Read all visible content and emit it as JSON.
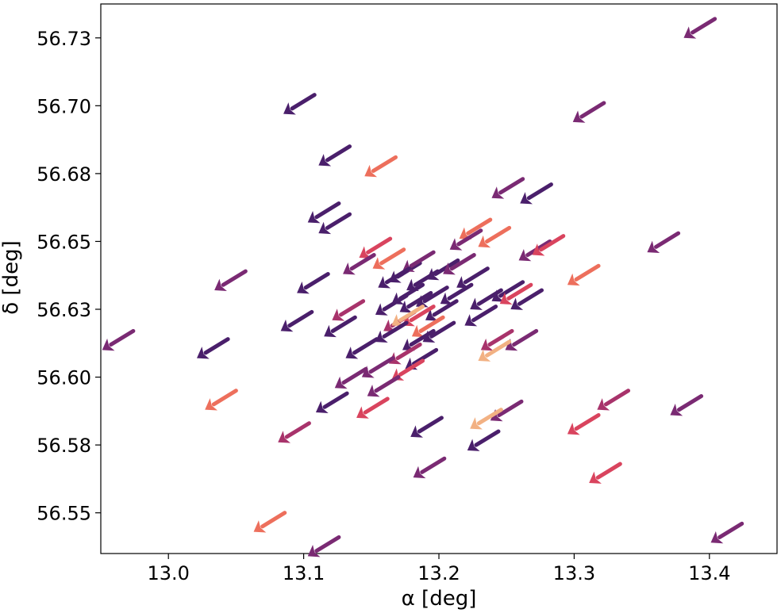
{
  "chart_data": {
    "type": "quiver",
    "xlabel": "α [deg]",
    "ylabel": "δ [deg]",
    "xlim": [
      12.95,
      13.45
    ],
    "ylim": [
      56.535,
      56.7375
    ],
    "xticks": [
      13.0,
      13.1,
      13.2,
      13.3,
      13.4
    ],
    "xtick_labels": [
      "13.0",
      "13.1",
      "13.2",
      "13.3",
      "13.4"
    ],
    "yticks": [
      56.55,
      56.575,
      56.6,
      56.625,
      56.65,
      56.675,
      56.7,
      56.725
    ],
    "ytick_labels": [
      "56.55",
      "56.58",
      "56.60",
      "56.63",
      "56.65",
      "56.68",
      "56.70",
      "56.73"
    ],
    "grid": false,
    "colormap": "magma",
    "colors": {
      "dark": "#4a1f6b",
      "purple": "#7a2a73",
      "magenta": "#a8336b",
      "red": "#d9445e",
      "coral": "#ed6f5c",
      "peach": "#f2b183"
    },
    "arrows": [
      {
        "x": 13.404,
        "y": 56.732,
        "c": "purple"
      },
      {
        "x": 13.108,
        "y": 56.704,
        "c": "dark"
      },
      {
        "x": 13.322,
        "y": 56.701,
        "c": "purple"
      },
      {
        "x": 13.134,
        "y": 56.685,
        "c": "dark"
      },
      {
        "x": 13.168,
        "y": 56.681,
        "c": "coral"
      },
      {
        "x": 13.262,
        "y": 56.673,
        "c": "purple"
      },
      {
        "x": 13.283,
        "y": 56.671,
        "c": "dark"
      },
      {
        "x": 13.126,
        "y": 56.664,
        "c": "dark"
      },
      {
        "x": 13.134,
        "y": 56.66,
        "c": "dark"
      },
      {
        "x": 13.238,
        "y": 56.658,
        "c": "coral"
      },
      {
        "x": 13.252,
        "y": 56.655,
        "c": "coral"
      },
      {
        "x": 13.231,
        "y": 56.654,
        "c": "purple"
      },
      {
        "x": 13.164,
        "y": 56.651,
        "c": "red"
      },
      {
        "x": 13.282,
        "y": 56.65,
        "c": "purple"
      },
      {
        "x": 13.292,
        "y": 56.652,
        "c": "red"
      },
      {
        "x": 13.377,
        "y": 56.653,
        "c": "purple"
      },
      {
        "x": 13.152,
        "y": 56.645,
        "c": "purple"
      },
      {
        "x": 13.174,
        "y": 56.647,
        "c": "coral"
      },
      {
        "x": 13.186,
        "y": 56.642,
        "c": "dark"
      },
      {
        "x": 13.196,
        "y": 56.646,
        "c": "purple"
      },
      {
        "x": 13.214,
        "y": 56.643,
        "c": "dark"
      },
      {
        "x": 13.226,
        "y": 56.645,
        "c": "purple"
      },
      {
        "x": 13.318,
        "y": 56.641,
        "c": "coral"
      },
      {
        "x": 13.118,
        "y": 56.638,
        "c": "dark"
      },
      {
        "x": 13.178,
        "y": 56.64,
        "c": "dark"
      },
      {
        "x": 13.199,
        "y": 56.639,
        "c": "dark"
      },
      {
        "x": 13.236,
        "y": 56.64,
        "c": "dark"
      },
      {
        "x": 13.057,
        "y": 56.639,
        "c": "purple"
      },
      {
        "x": 13.188,
        "y": 56.634,
        "c": "dark"
      },
      {
        "x": 13.206,
        "y": 56.633,
        "c": "dark"
      },
      {
        "x": 13.224,
        "y": 56.634,
        "c": "dark"
      },
      {
        "x": 13.262,
        "y": 56.635,
        "c": "dark"
      },
      {
        "x": 13.176,
        "y": 56.63,
        "c": "dark"
      },
      {
        "x": 13.194,
        "y": 56.631,
        "c": "dark"
      },
      {
        "x": 13.213,
        "y": 56.628,
        "c": "dark"
      },
      {
        "x": 13.246,
        "y": 56.632,
        "c": "dark"
      },
      {
        "x": 13.268,
        "y": 56.634,
        "c": "red"
      },
      {
        "x": 13.276,
        "y": 56.632,
        "c": "dark"
      },
      {
        "x": 13.182,
        "y": 56.624,
        "c": "magenta"
      },
      {
        "x": 13.196,
        "y": 56.626,
        "c": "red"
      },
      {
        "x": 13.203,
        "y": 56.622,
        "c": "coral"
      },
      {
        "x": 13.144,
        "y": 56.628,
        "c": "magenta"
      },
      {
        "x": 13.242,
        "y": 56.626,
        "c": "dark"
      },
      {
        "x": 13.106,
        "y": 56.624,
        "c": "dark"
      },
      {
        "x": 13.188,
        "y": 56.626,
        "c": "peach"
      },
      {
        "x": 13.176,
        "y": 56.62,
        "c": "dark"
      },
      {
        "x": 13.138,
        "y": 56.622,
        "c": "dark"
      },
      {
        "x": 13.196,
        "y": 56.617,
        "c": "dark"
      },
      {
        "x": 13.211,
        "y": 56.62,
        "c": "dark"
      },
      {
        "x": 13.254,
        "y": 56.617,
        "c": "magenta"
      },
      {
        "x": 13.272,
        "y": 56.617,
        "c": "purple"
      },
      {
        "x": 13.044,
        "y": 56.614,
        "c": "dark"
      },
      {
        "x": 12.974,
        "y": 56.617,
        "c": "purple"
      },
      {
        "x": 13.154,
        "y": 56.614,
        "c": "dark"
      },
      {
        "x": 13.186,
        "y": 56.612,
        "c": "magenta"
      },
      {
        "x": 13.198,
        "y": 56.61,
        "c": "dark"
      },
      {
        "x": 13.252,
        "y": 56.613,
        "c": "peach"
      },
      {
        "x": 13.166,
        "y": 56.607,
        "c": "purple"
      },
      {
        "x": 13.188,
        "y": 56.606,
        "c": "red"
      },
      {
        "x": 13.146,
        "y": 56.603,
        "c": "purple"
      },
      {
        "x": 13.17,
        "y": 56.6,
        "c": "purple"
      },
      {
        "x": 13.05,
        "y": 56.595,
        "c": "coral"
      },
      {
        "x": 13.162,
        "y": 56.592,
        "c": "red"
      },
      {
        "x": 13.132,
        "y": 56.594,
        "c": "dark"
      },
      {
        "x": 13.261,
        "y": 56.591,
        "c": "purple"
      },
      {
        "x": 13.34,
        "y": 56.595,
        "c": "magenta"
      },
      {
        "x": 13.394,
        "y": 56.593,
        "c": "purple"
      },
      {
        "x": 13.246,
        "y": 56.588,
        "c": "peach"
      },
      {
        "x": 13.318,
        "y": 56.586,
        "c": "red"
      },
      {
        "x": 13.104,
        "y": 56.583,
        "c": "magenta"
      },
      {
        "x": 13.202,
        "y": 56.585,
        "c": "dark"
      },
      {
        "x": 13.244,
        "y": 56.58,
        "c": "dark"
      },
      {
        "x": 13.204,
        "y": 56.57,
        "c": "purple"
      },
      {
        "x": 13.334,
        "y": 56.568,
        "c": "red"
      },
      {
        "x": 13.086,
        "y": 56.55,
        "c": "coral"
      },
      {
        "x": 13.126,
        "y": 56.541,
        "c": "purple"
      },
      {
        "x": 13.424,
        "y": 56.546,
        "c": "purple"
      }
    ],
    "arrow_vector": {
      "dx": -0.023,
      "dy": -0.007
    }
  }
}
